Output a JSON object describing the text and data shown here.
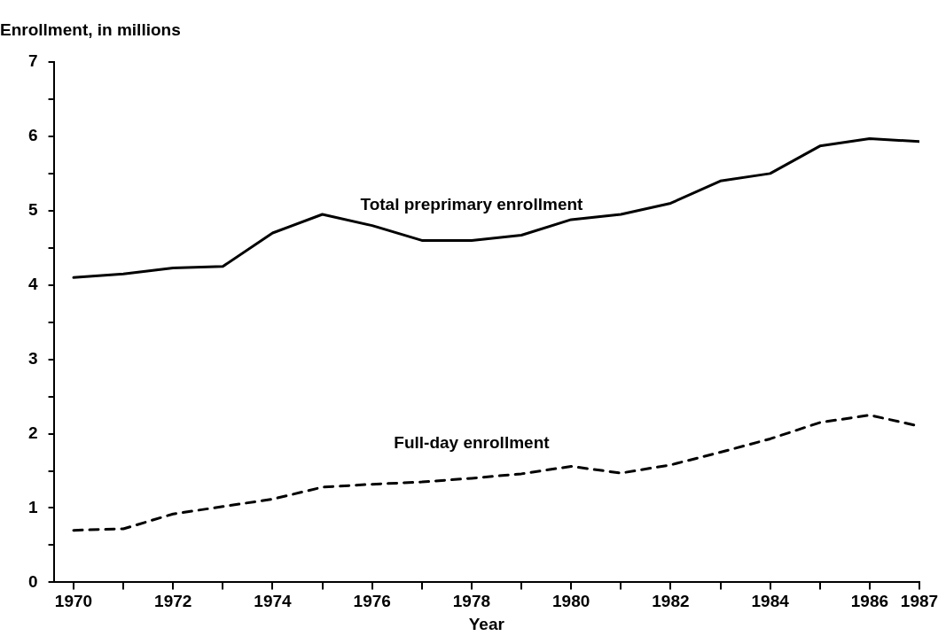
{
  "chart_data": {
    "type": "line",
    "xlabel": "Year",
    "ylabel": "Enrollment, in millions",
    "x": [
      1970,
      1971,
      1972,
      1973,
      1974,
      1975,
      1976,
      1977,
      1978,
      1979,
      1980,
      1981,
      1982,
      1983,
      1984,
      1985,
      1986,
      1987
    ],
    "series": [
      {
        "name": "Total preprimary enrollment",
        "color": "#000000",
        "line_style": "solid",
        "values": [
          4.1,
          4.15,
          4.23,
          4.25,
          4.7,
          4.95,
          4.8,
          4.6,
          4.6,
          4.67,
          4.88,
          4.95,
          5.1,
          5.4,
          5.5,
          5.87,
          5.97,
          5.93
        ]
      },
      {
        "name": "Full-day enrollment",
        "color": "#000000",
        "line_style": "dashed",
        "values": [
          0.7,
          0.72,
          0.92,
          1.02,
          1.12,
          1.28,
          1.32,
          1.35,
          1.4,
          1.46,
          1.56,
          1.47,
          1.58,
          1.75,
          1.93,
          2.15,
          2.25,
          2.1
        ]
      }
    ],
    "xlim": [
      1969.6,
      1987
    ],
    "xticks": [
      1970,
      {
        "value": 1971,
        "label": null
      },
      1972,
      {
        "value": 1973,
        "label": null
      },
      1974,
      {
        "value": 1975,
        "label": null
      },
      1976,
      {
        "value": 1977,
        "label": null
      },
      1978,
      {
        "value": 1979,
        "label": null
      },
      1980,
      {
        "value": 1981,
        "label": null
      },
      1982,
      {
        "value": 1983,
        "label": null
      },
      1984,
      {
        "value": 1985,
        "label": null
      },
      1986,
      1987
    ],
    "ylim": [
      0,
      7
    ],
    "yticks": [
      0,
      {
        "value": 0.5,
        "label": null
      },
      1,
      {
        "value": 1.5,
        "label": null
      },
      2,
      {
        "value": 2.5,
        "label": null
      },
      3,
      {
        "value": 3.5,
        "label": null
      },
      4,
      {
        "value": 4.5,
        "label": null
      },
      5,
      {
        "value": 5.5,
        "label": null
      },
      6,
      {
        "value": 6.5,
        "label": null
      },
      7
    ],
    "grid": false,
    "legend": false,
    "marker": "none"
  }
}
